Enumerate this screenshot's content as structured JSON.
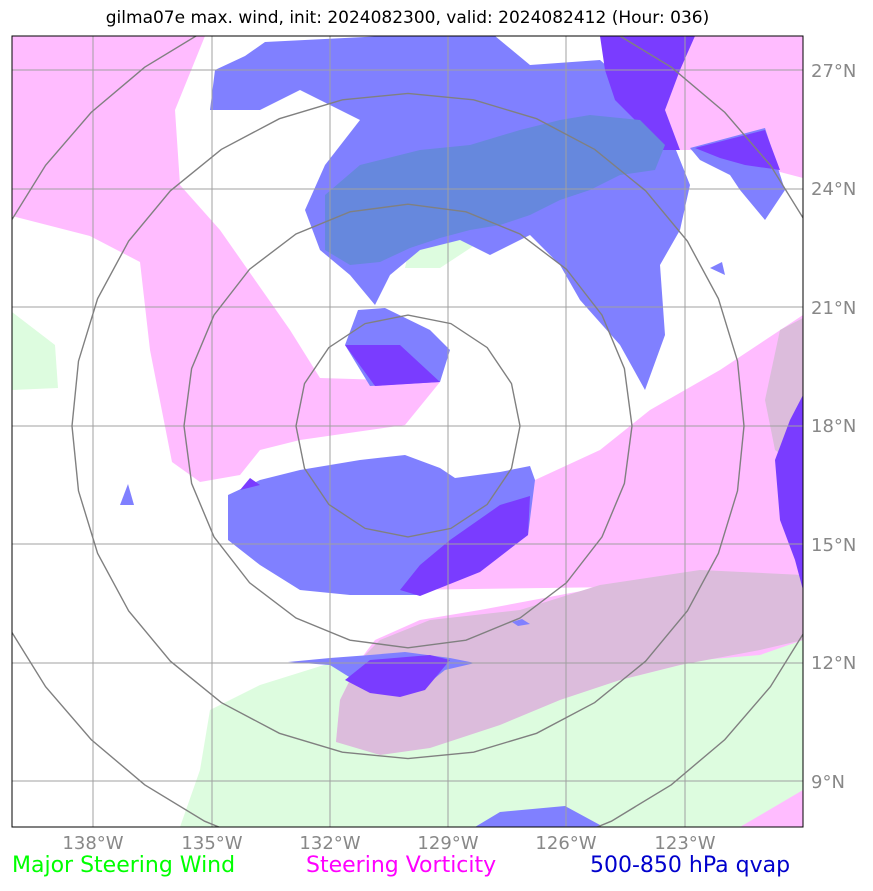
{
  "title": "gilma07e max. wind, init: 2024082300, valid: 2024082412 (Hour: 036)",
  "lat_labels": [
    "27°N",
    "24°N",
    "21°N",
    "18°N",
    "15°N",
    "12°N",
    "9°N"
  ],
  "lon_labels": [
    "138°W",
    "135°W",
    "132°W",
    "129°W",
    "126°W",
    "123°W"
  ],
  "legend": {
    "wind": "Major Steering Wind",
    "vorticity": "Steering Vorticity",
    "qvap": "500-850 hPa qvap"
  },
  "colors": {
    "wind": "#00ff00",
    "vorticity": "#ff00ff",
    "qvap": "#0000cc",
    "wind_fill": "#ddfcdf",
    "vorticity_fill": "#ffbcff",
    "qvap_fill": "#8080ff",
    "qvap_dark_fill": "#7a3cff",
    "overlap_fill": "#dcbcdc",
    "overlap_blue_fill": "#6688dd",
    "grid": "#a0a0a0",
    "rings": "#808080"
  }
}
